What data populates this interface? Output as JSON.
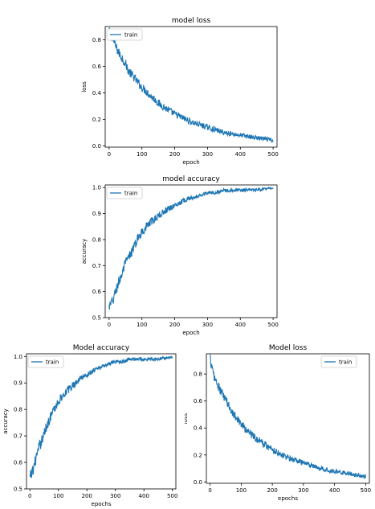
{
  "series_color": "#1f77b4",
  "chart_data": [
    {
      "type": "line",
      "title": "model loss",
      "xlabel": "epoch",
      "ylabel": "loss",
      "xlim": [
        -12,
        512
      ],
      "ylim": [
        -0.01,
        0.9
      ],
      "xticks": [
        0,
        100,
        200,
        300,
        400,
        500
      ],
      "yticks": [
        0.0,
        0.2,
        0.4,
        0.6,
        0.8
      ],
      "ytick_labels": [
        "0.0",
        "0.2",
        "0.4",
        "0.6",
        "0.8"
      ],
      "legend": "upper left",
      "grid": false,
      "series": [
        {
          "name": "train",
          "x": [
            0,
            5,
            10,
            20,
            30,
            40,
            50,
            60,
            75,
            90,
            100,
            110,
            125,
            140,
            150,
            175,
            200,
            225,
            250,
            275,
            300,
            325,
            350,
            375,
            400,
            425,
            450,
            475,
            500
          ],
          "y": [
            0.86,
            0.84,
            0.82,
            0.75,
            0.7,
            0.66,
            0.62,
            0.56,
            0.52,
            0.47,
            0.44,
            0.42,
            0.38,
            0.35,
            0.32,
            0.28,
            0.24,
            0.21,
            0.18,
            0.16,
            0.14,
            0.12,
            0.1,
            0.09,
            0.08,
            0.07,
            0.06,
            0.05,
            0.04
          ]
        }
      ]
    },
    {
      "type": "line",
      "title": "model accuracy",
      "xlabel": "epoch",
      "ylabel": "accuracy",
      "xlim": [
        -12,
        512
      ],
      "ylim": [
        0.5,
        1.01
      ],
      "xticks": [
        0,
        100,
        200,
        300,
        400,
        500
      ],
      "yticks": [
        0.5,
        0.6,
        0.7,
        0.8,
        0.9,
        1.0
      ],
      "ytick_labels": [
        "0.5",
        "0.6",
        "0.7",
        "0.8",
        "0.9",
        "1.0"
      ],
      "legend": "upper left",
      "grid": false,
      "series": [
        {
          "name": "train",
          "x": [
            0,
            10,
            20,
            30,
            40,
            50,
            60,
            75,
            90,
            100,
            120,
            140,
            160,
            180,
            200,
            225,
            250,
            275,
            300,
            325,
            350,
            400,
            450,
            500
          ],
          "y": [
            0.54,
            0.56,
            0.6,
            0.64,
            0.67,
            0.71,
            0.73,
            0.77,
            0.81,
            0.83,
            0.86,
            0.88,
            0.9,
            0.92,
            0.93,
            0.95,
            0.96,
            0.97,
            0.98,
            0.98,
            0.99,
            0.99,
            0.99,
            1.0
          ]
        }
      ]
    },
    {
      "type": "line",
      "title": "Model accuracy",
      "xlabel": "epochs",
      "ylabel": "accuracy",
      "xlim": [
        -12,
        512
      ],
      "ylim": [
        0.5,
        1.01
      ],
      "xticks": [
        0,
        100,
        200,
        300,
        400,
        500
      ],
      "yticks": [
        0.5,
        0.6,
        0.7,
        0.8,
        0.9,
        1.0
      ],
      "ytick_labels": [
        "0.5",
        "0.6",
        "0.7",
        "0.8",
        "0.9",
        "1.0"
      ],
      "legend": "upper left",
      "grid": false,
      "series": [
        {
          "name": "train",
          "x": [
            0,
            10,
            20,
            30,
            40,
            50,
            60,
            75,
            90,
            100,
            120,
            140,
            160,
            180,
            200,
            225,
            250,
            275,
            300,
            325,
            350,
            400,
            450,
            500
          ],
          "y": [
            0.54,
            0.57,
            0.61,
            0.65,
            0.68,
            0.71,
            0.74,
            0.78,
            0.81,
            0.83,
            0.86,
            0.88,
            0.9,
            0.92,
            0.93,
            0.95,
            0.96,
            0.97,
            0.98,
            0.98,
            0.99,
            0.99,
            0.99,
            1.0
          ]
        }
      ]
    },
    {
      "type": "line",
      "title": "Model loss",
      "xlabel": "epochs",
      "ylabel": "loss",
      "xlim": [
        -12,
        512
      ],
      "ylim": [
        -0.01,
        0.95
      ],
      "xticks": [
        0,
        100,
        200,
        300,
        400,
        500
      ],
      "yticks": [
        0.0,
        0.2,
        0.4,
        0.6,
        0.8
      ],
      "ytick_labels": [
        "0.0",
        "0.2",
        "0.4",
        "0.6",
        "0.8"
      ],
      "legend": "upper right",
      "grid": false,
      "series": [
        {
          "name": "train",
          "x": [
            0,
            5,
            10,
            20,
            30,
            40,
            50,
            60,
            75,
            90,
            100,
            110,
            125,
            140,
            150,
            175,
            200,
            225,
            250,
            275,
            300,
            325,
            350,
            375,
            400,
            425,
            450,
            475,
            500
          ],
          "y": [
            0.92,
            0.86,
            0.8,
            0.74,
            0.69,
            0.65,
            0.61,
            0.56,
            0.51,
            0.46,
            0.43,
            0.4,
            0.37,
            0.34,
            0.32,
            0.28,
            0.24,
            0.21,
            0.18,
            0.16,
            0.14,
            0.12,
            0.1,
            0.09,
            0.08,
            0.07,
            0.06,
            0.05,
            0.04
          ]
        }
      ]
    }
  ]
}
